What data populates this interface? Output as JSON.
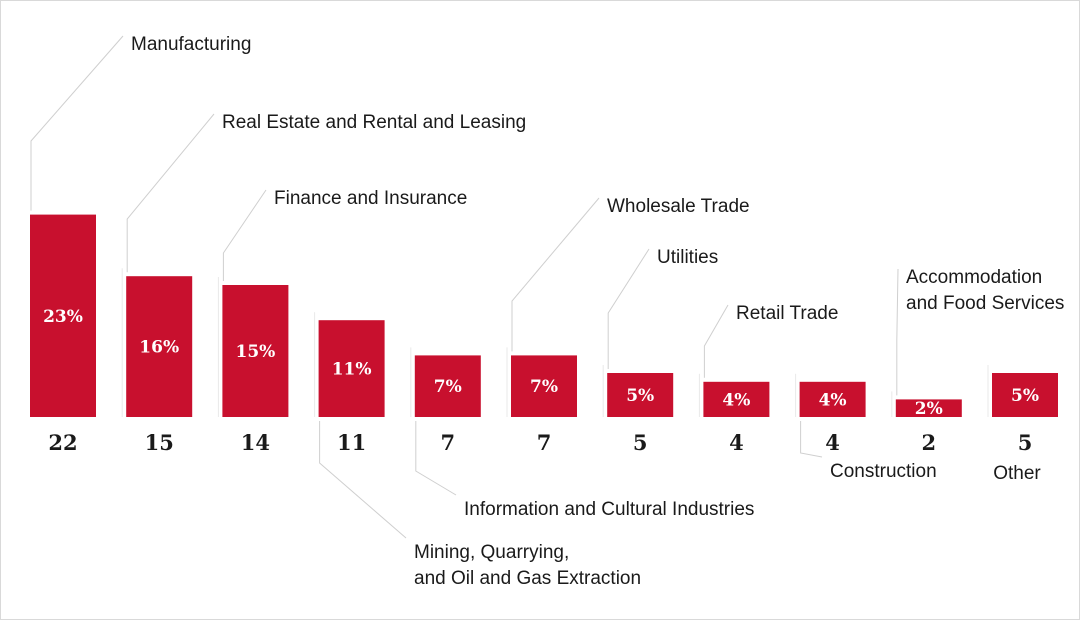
{
  "chart_data": {
    "type": "bar",
    "categories": [
      [
        "Manufacturing"
      ],
      [
        "Real Estate and Rental and Leasing"
      ],
      [
        "Finance and Insurance"
      ],
      [
        "Mining, Quarrying,",
        "and Oil and Gas Extraction"
      ],
      [
        "Information and Cultural Industries"
      ],
      [
        "Wholesale Trade"
      ],
      [
        "Utilities"
      ],
      [
        "Retail Trade"
      ],
      [
        "Construction"
      ],
      [
        "Accommodation",
        "and Food Services"
      ],
      [
        "Other"
      ]
    ],
    "percent_labels": [
      "23%",
      "16%",
      "15%",
      "11%",
      "7%",
      "7%",
      "5%",
      "4%",
      "4%",
      "2%",
      "5%"
    ],
    "values": [
      23,
      16,
      15,
      11,
      7,
      7,
      5,
      4,
      4,
      2,
      5
    ],
    "counts": [
      22,
      15,
      14,
      11,
      7,
      7,
      5,
      4,
      4,
      2,
      5
    ],
    "label_positions": [
      "above",
      "above",
      "above",
      "below",
      "below",
      "above",
      "above",
      "above",
      "below",
      "above",
      "below"
    ],
    "bar_color": "#c8102e",
    "leader_color": "#cfcfcf"
  }
}
